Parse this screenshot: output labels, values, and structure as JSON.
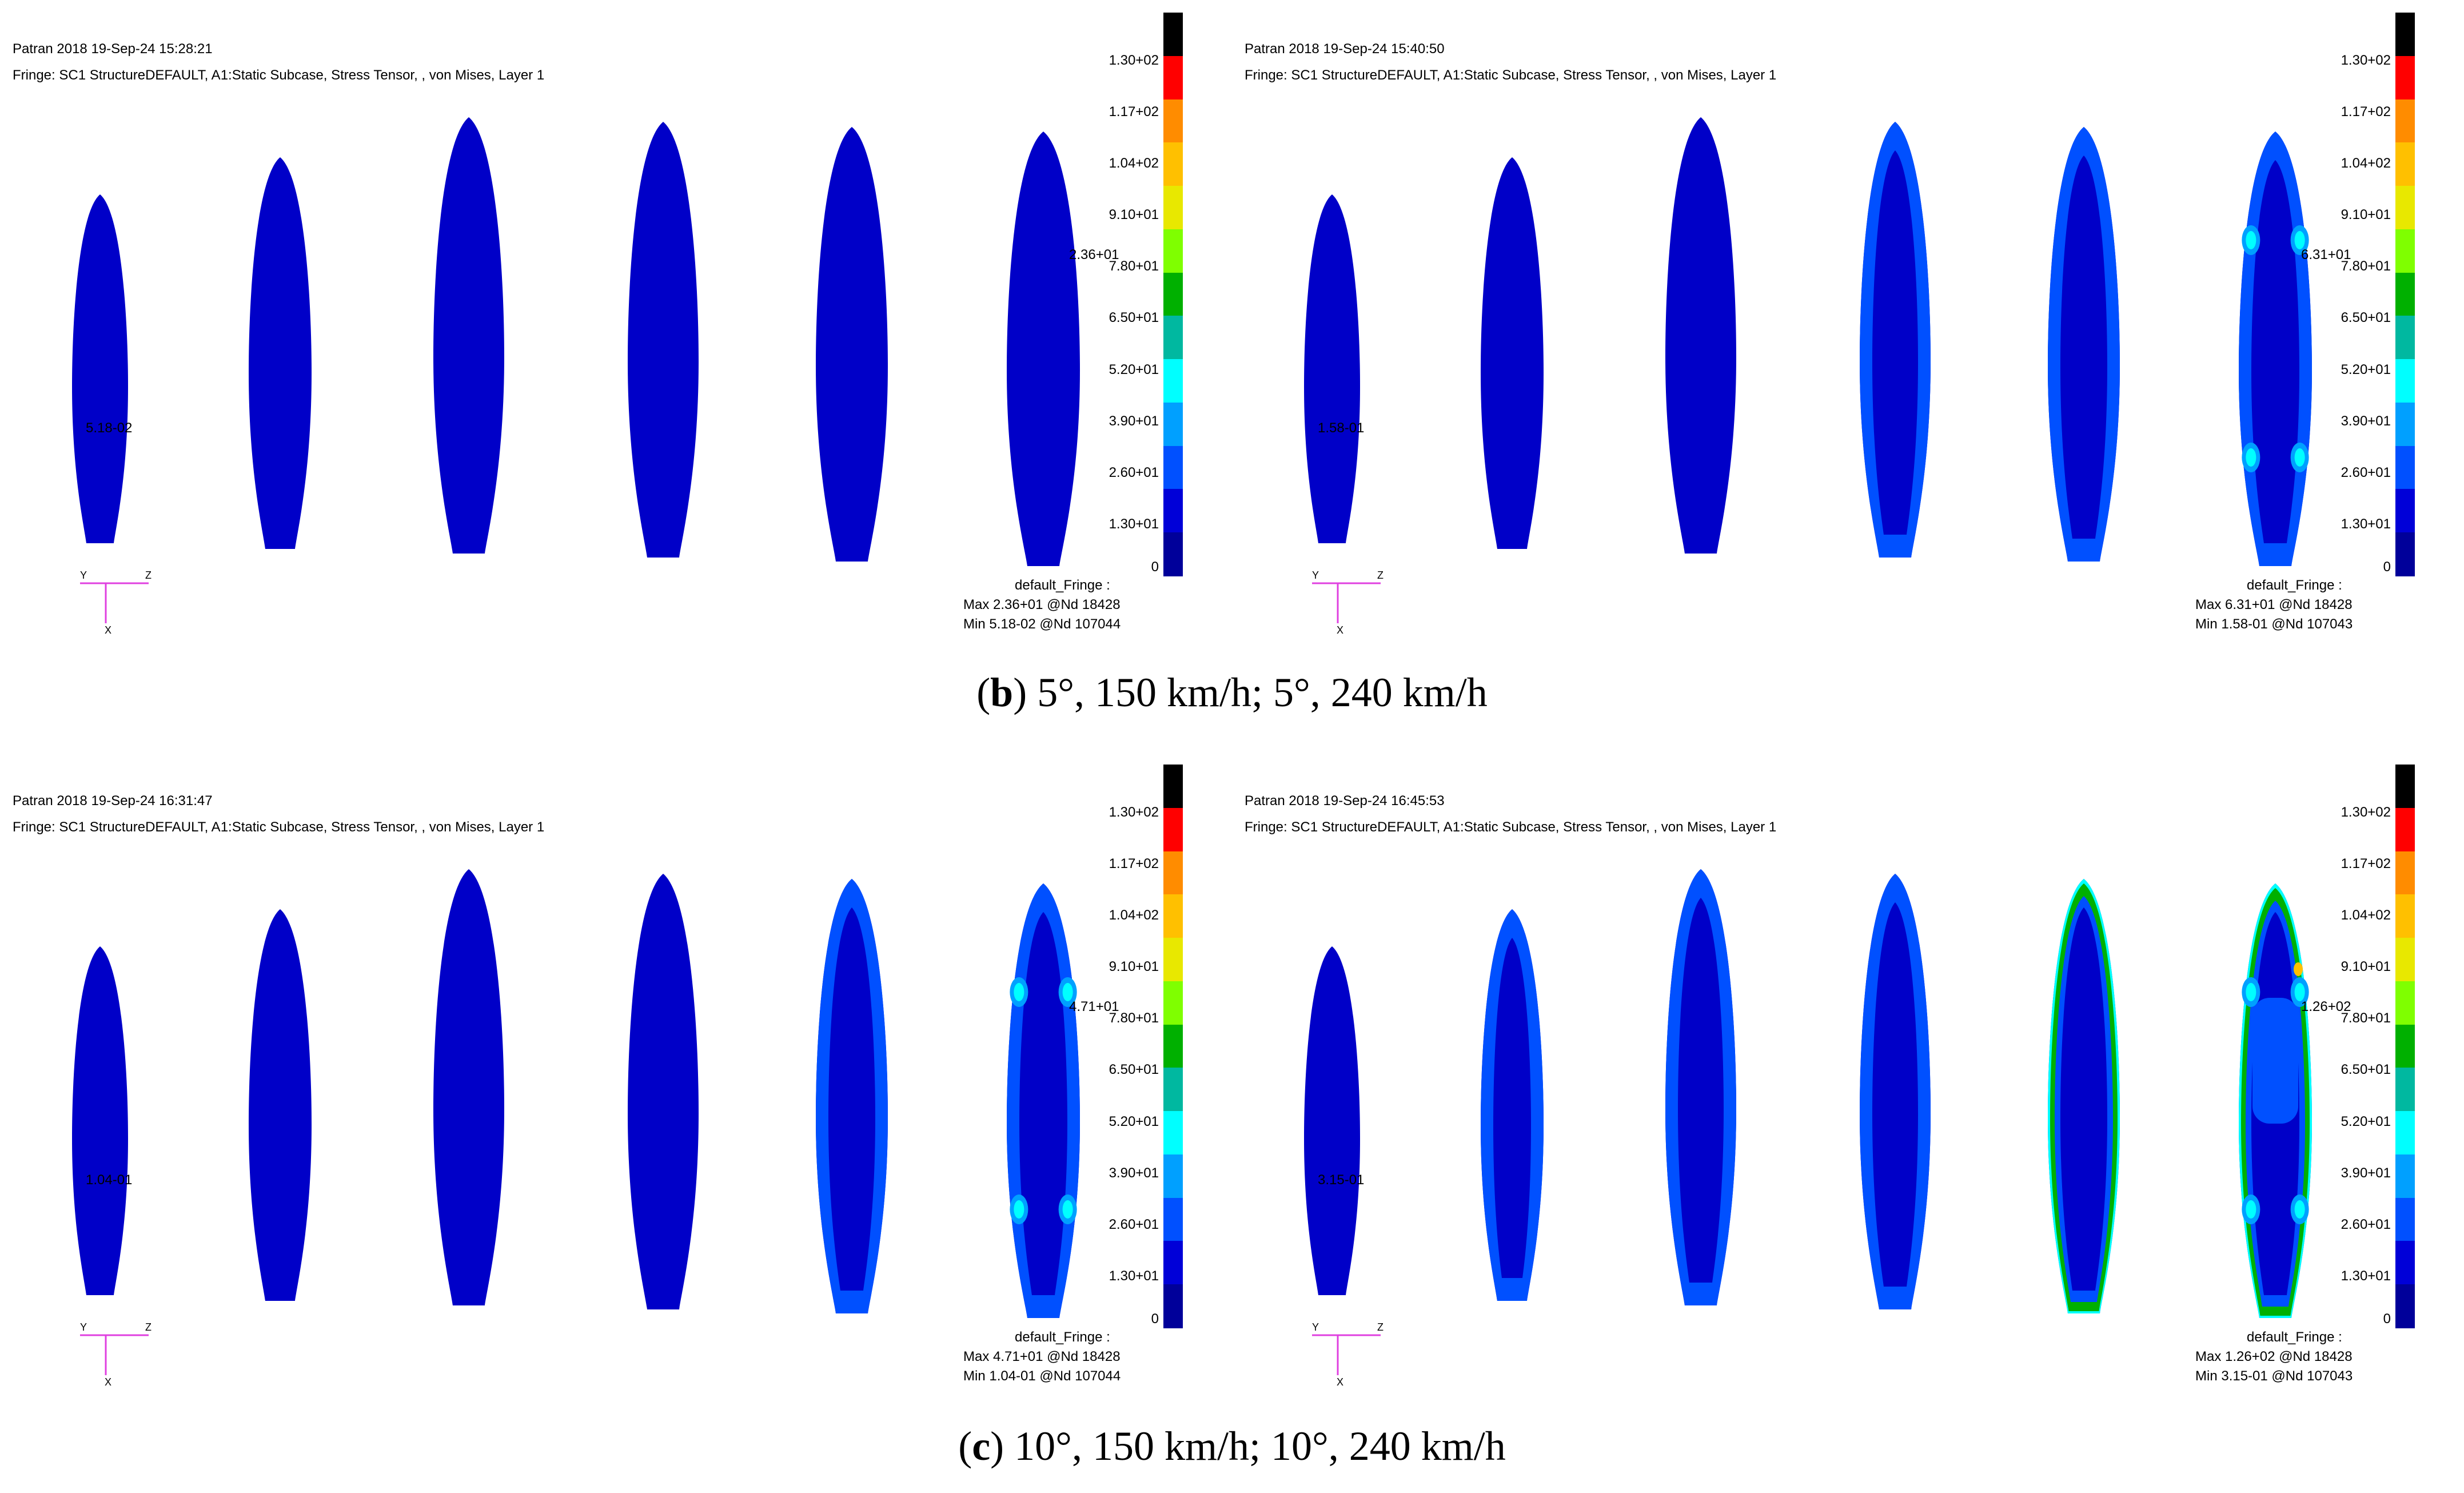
{
  "panels": [
    {
      "timestamp": "Patran 2018 19-Sep-24 15:28:21",
      "fringe_line": "Fringe: SC1 StructureDEFAULT, A1:Static Subcase, Stress Tensor, , von Mises, Layer 1",
      "max_label": "2.36+01",
      "min_label": "5.18-02",
      "fringe_title": "default_Fringe :",
      "fringe_max": "Max 2.36+01 @Nd 18428",
      "fringe_min": "Min 5.18-02 @Nd 107044",
      "stress_level": 0
    },
    {
      "timestamp": "Patran 2018 19-Sep-24 15:40:50",
      "fringe_line": "Fringe: SC1 StructureDEFAULT, A1:Static Subcase, Stress Tensor, , von Mises, Layer 1",
      "max_label": "6.31+01",
      "min_label": "1.58-01",
      "fringe_title": "default_Fringe :",
      "fringe_max": "Max 6.31+01 @Nd 18428",
      "fringe_min": "Min 1.58-01 @Nd 107043",
      "stress_level": 2
    },
    {
      "timestamp": "Patran 2018 19-Sep-24 16:31:47",
      "fringe_line": "Fringe: SC1 StructureDEFAULT, A1:Static Subcase, Stress Tensor, , von Mises, Layer 1",
      "max_label": "4.71+01",
      "min_label": "1.04-01",
      "fringe_title": "default_Fringe :",
      "fringe_max": "Max 4.71+01 @Nd 18428",
      "fringe_min": "Min 1.04-01 @Nd 107044",
      "stress_level": 1
    },
    {
      "timestamp": "Patran 2018 19-Sep-24 16:45:53",
      "fringe_line": "Fringe: SC1 StructureDEFAULT, A1:Static Subcase, Stress Tensor, , von Mises, Layer 1",
      "max_label": "1.26+02",
      "min_label": "3.15-01",
      "fringe_title": "default_Fringe :",
      "fringe_max": "Max 1.26+02 @Nd 18428",
      "fringe_min": "Min 3.15-01 @Nd 107043",
      "stress_level": 3
    }
  ],
  "legend_ticks": [
    "1.30+02",
    "1.17+02",
    "1.04+02",
    "9.10+01",
    "7.80+01",
    "6.50+01",
    "5.20+01",
    "3.90+01",
    "2.60+01",
    "1.30+01",
    "0"
  ],
  "legend_colors": [
    "#000000",
    "#ff0000",
    "#ff8c00",
    "#ffc000",
    "#e8e800",
    "#7fff00",
    "#00b000",
    "#00b8a0",
    "#00ffff",
    "#00a0ff",
    "#0050ff",
    "#0000d8",
    "#00009a"
  ],
  "axis_labels": {
    "y": "Y",
    "z": "Z",
    "x": "X"
  },
  "captions": [
    {
      "letter": "b",
      "text": ") 5°, 150 km/h; 5°, 240 km/h"
    },
    {
      "letter": "c",
      "text": ") 10°, 150 km/h; 10°, 240 km/h"
    }
  ]
}
